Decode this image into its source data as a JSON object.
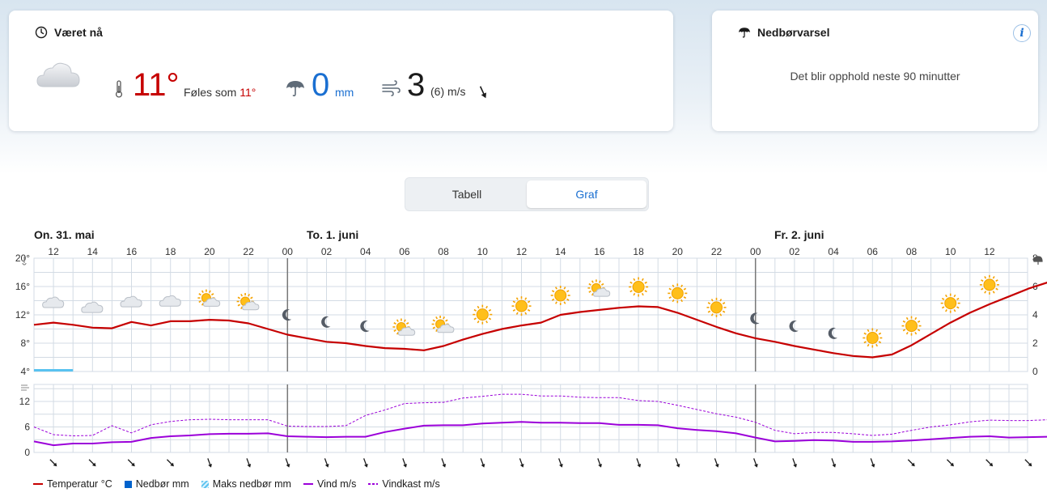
{
  "now": {
    "title": "Været nå",
    "temperature": "11°",
    "feels_like_label": "Føles som",
    "feels_like_value": "11°",
    "precipitation": "0",
    "precipitation_unit": "mm",
    "wind": "3",
    "wind_gust_unit": "(6) m/s",
    "icons": [
      "clock-icon",
      "cloud-icon",
      "thermometer-icon",
      "umbrella-icon",
      "wind-icon",
      "wind-direction-arrow-icon"
    ]
  },
  "precip_forecast": {
    "title": "Nedbørvarsel",
    "info": "i",
    "message": "Det blir opphold neste 90 minutter"
  },
  "tabs": {
    "table": "Tabell",
    "graph": "Graf",
    "selected": "Graf"
  },
  "days": [
    "On. 31. mai",
    "To. 1. juni",
    "Fr. 2. juni"
  ],
  "legend": {
    "temperature": "Temperatur °C",
    "precipitation": "Nedbør mm",
    "max_precipitation": "Maks nedbør mm",
    "wind": "Vind m/s",
    "gust": "Vindkast m/s"
  },
  "colors": {
    "temperature": "#c60000",
    "precipitation": "#0062cc",
    "max_precipitation": "#59c2f0",
    "wind": "#9b00d9",
    "gust": "#9b00d9",
    "grid": "#d3dbe4"
  },
  "chart_data": [
    {
      "type": "line",
      "x_labels": [
        "12",
        "14",
        "16",
        "18",
        "20",
        "22",
        "00",
        "02",
        "04",
        "06",
        "08",
        "10",
        "12",
        "14",
        "16",
        "18",
        "20",
        "22",
        "00",
        "02",
        "04",
        "06",
        "08",
        "10",
        "12"
      ],
      "ylabel_left": "thermometer-icon",
      "ylabel_right": "umbrella-icon",
      "y_left_ticks": [
        "4°",
        "8°",
        "12°",
        "16°",
        "20°"
      ],
      "y_right_ticks": [
        "0",
        "2",
        "4",
        "6",
        "8"
      ],
      "ylim_left": [
        4,
        20
      ],
      "ylim_right": [
        0,
        8
      ],
      "x_hours_start": 11,
      "series": [
        {
          "name": "Temperatur °C",
          "values": [
            10.6,
            10.9,
            10.6,
            10.2,
            10.1,
            11.0,
            10.5,
            11.1,
            11.1,
            11.3,
            11.2,
            10.8,
            10.0,
            9.2,
            8.7,
            8.2,
            8.0,
            7.6,
            7.3,
            7.2,
            7.0,
            7.6,
            8.5,
            9.3,
            10.0,
            10.5,
            10.9,
            12.0,
            12.4,
            12.7,
            13.0,
            13.2,
            13.1,
            12.3,
            11.3,
            10.3,
            9.4,
            8.7,
            8.2,
            7.6,
            7.1,
            6.6,
            6.2,
            6.0,
            6.4,
            7.7,
            9.3,
            10.9,
            12.3,
            13.5,
            14.6,
            15.7,
            16.6
          ]
        }
      ],
      "max_precipitation": {
        "from_hour": 11,
        "to_hour": 13,
        "value_mm": 0.1
      },
      "weather_icons": [
        "cloud",
        "cloud",
        "cloud",
        "cloud",
        "partly-sunny",
        "partly-sunny",
        "moon",
        "moon",
        "moon",
        "partly-sunny",
        "partly-sunny",
        "sun",
        "sun",
        "sun",
        "partly-sunny",
        "sun",
        "sun",
        "sun",
        "moon",
        "moon",
        "moon",
        "sun",
        "sun",
        "sun",
        "sun"
      ]
    },
    {
      "type": "line",
      "ylabel_left": "wind-icon",
      "y_left_ticks": [
        "0",
        "6",
        "12"
      ],
      "ylim": [
        0,
        16
      ],
      "series": [
        {
          "name": "Vind m/s",
          "values": [
            2.6,
            1.7,
            2.1,
            2.1,
            2.4,
            2.5,
            3.4,
            3.8,
            4.0,
            4.3,
            4.4,
            4.4,
            4.5,
            3.8,
            3.7,
            3.6,
            3.7,
            3.7,
            4.8,
            5.6,
            6.3,
            6.4,
            6.4,
            6.8,
            7.0,
            7.2,
            7.0,
            7.0,
            6.9,
            6.9,
            6.5,
            6.5,
            6.4,
            5.7,
            5.3,
            5.0,
            4.5,
            3.5,
            2.6,
            2.7,
            2.9,
            2.8,
            2.5,
            2.5,
            2.6,
            2.8,
            3.1,
            3.4,
            3.7,
            3.8,
            3.5,
            3.6,
            3.7
          ]
        },
        {
          "name": "Vindkast m/s",
          "values": [
            6.0,
            4.2,
            3.9,
            4.0,
            6.3,
            4.6,
            6.5,
            7.3,
            7.7,
            7.8,
            7.7,
            7.7,
            7.7,
            6.2,
            6.1,
            6.1,
            6.3,
            8.7,
            10.0,
            11.5,
            11.7,
            11.8,
            12.8,
            13.2,
            13.7,
            13.7,
            13.3,
            13.3,
            13.0,
            12.9,
            12.9,
            12.2,
            12.0,
            11.1,
            10.1,
            9.1,
            8.3,
            7.1,
            5.2,
            4.4,
            4.7,
            4.7,
            4.4,
            4.0,
            4.3,
            5.2,
            6.0,
            6.5,
            7.2,
            7.6,
            7.5,
            7.5,
            7.7
          ]
        }
      ],
      "wind_direction_arrows": [
        "se",
        "se",
        "se",
        "se",
        "s",
        "s",
        "s",
        "s",
        "s",
        "s",
        "s",
        "s",
        "s",
        "s",
        "s",
        "s",
        "s",
        "s",
        "s",
        "s",
        "s",
        "s",
        "se",
        "se",
        "se",
        "se"
      ]
    }
  ]
}
